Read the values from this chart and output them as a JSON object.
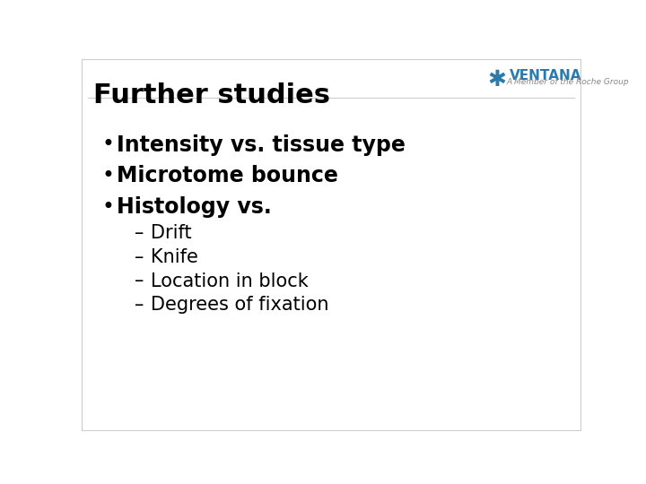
{
  "title": "Further studies",
  "title_fontsize": 22,
  "title_color": "#000000",
  "background_color": "#ffffff",
  "bullet_items": [
    "Intensity vs. tissue type",
    "Microtome bounce",
    "Histology vs."
  ],
  "sub_items": [
    "Drift",
    "Knife",
    "Location in block",
    "Degrees of fixation"
  ],
  "bullet_fontsize": 17,
  "sub_fontsize": 15,
  "bullet_color": "#000000",
  "sub_color": "#000000",
  "ventana_text": "VENTANA",
  "ventana_color": "#2a7aad",
  "ventana_subtitle": "A Member of the Roche Group",
  "ventana_subtitle_color": "#888888",
  "border_color": "#cccccc"
}
